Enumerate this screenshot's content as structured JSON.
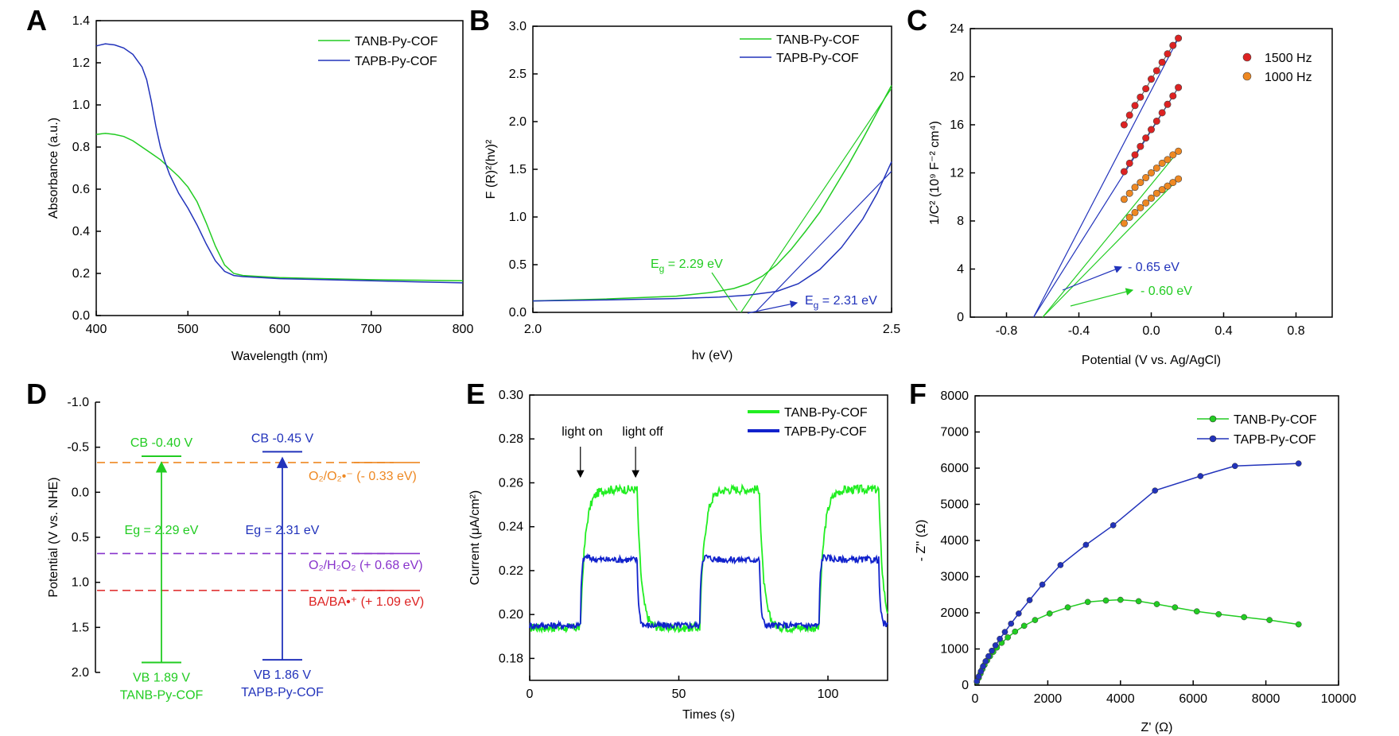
{
  "chart_data": [
    {
      "panel": "A",
      "type": "line",
      "xlabel": "Wavelength (nm)",
      "ylabel": "Absorbance (a.u.)",
      "xlim": [
        400,
        800
      ],
      "ylim": [
        0.0,
        1.4
      ],
      "xticks": [
        400,
        500,
        600,
        700,
        800
      ],
      "yticks": [
        0.0,
        0.2,
        0.4,
        0.6,
        0.8,
        1.0,
        1.2,
        1.4
      ],
      "xtick_labels": [
        "400",
        "500",
        "600",
        "700",
        "800"
      ],
      "ytick_labels": [
        "0.0",
        "0.2",
        "0.4",
        "0.6",
        "0.8",
        "1.0",
        "1.2",
        "1.4"
      ],
      "legend": [
        "TANB-Py-COF",
        "TAPB-Py-COF"
      ],
      "series": [
        {
          "name": "TANB-Py-COF",
          "color": "#22cc22",
          "x": [
            400,
            410,
            420,
            430,
            440,
            450,
            460,
            470,
            480,
            490,
            500,
            510,
            520,
            530,
            540,
            550,
            560,
            580,
            600,
            650,
            700,
            750,
            800
          ],
          "y": [
            0.86,
            0.865,
            0.86,
            0.85,
            0.83,
            0.8,
            0.77,
            0.74,
            0.7,
            0.66,
            0.61,
            0.54,
            0.44,
            0.33,
            0.24,
            0.2,
            0.19,
            0.185,
            0.18,
            0.175,
            0.17,
            0.168,
            0.165
          ]
        },
        {
          "name": "TAPB-Py-COF",
          "color": "#2233bb",
          "x": [
            400,
            410,
            420,
            430,
            440,
            450,
            455,
            460,
            465,
            470,
            475,
            480,
            490,
            500,
            510,
            520,
            530,
            540,
            550,
            560,
            580,
            600,
            650,
            700,
            750,
            800
          ],
          "y": [
            1.28,
            1.29,
            1.285,
            1.27,
            1.24,
            1.18,
            1.12,
            1.02,
            0.9,
            0.8,
            0.73,
            0.67,
            0.58,
            0.51,
            0.43,
            0.34,
            0.26,
            0.21,
            0.19,
            0.185,
            0.18,
            0.175,
            0.17,
            0.165,
            0.16,
            0.155
          ]
        }
      ]
    },
    {
      "panel": "B",
      "type": "line",
      "xlabel": "hv (eV)",
      "ylabel": "F (R)²(hv)²",
      "xlim": [
        2.0,
        2.5
      ],
      "ylim": [
        0.0,
        3.0
      ],
      "xticks": [
        2.0,
        2.5
      ],
      "yticks": [
        0.0,
        0.5,
        1.0,
        1.5,
        2.0,
        2.5,
        3.0
      ],
      "xtick_labels": [
        "2.0",
        "2.5"
      ],
      "ytick_labels": [
        "0.0",
        "0.5",
        "1.0",
        "1.5",
        "2.0",
        "2.5",
        "3.0"
      ],
      "legend": [
        "TANB-Py-COF",
        "TAPB-Py-COF"
      ],
      "series": [
        {
          "name": "TANB-Py-COF",
          "color": "#22cc22",
          "x": [
            2.0,
            2.1,
            2.2,
            2.25,
            2.28,
            2.3,
            2.32,
            2.34,
            2.36,
            2.38,
            2.4,
            2.42,
            2.44,
            2.46,
            2.48,
            2.5
          ],
          "y": [
            0.12,
            0.14,
            0.17,
            0.21,
            0.25,
            0.3,
            0.38,
            0.5,
            0.66,
            0.85,
            1.05,
            1.3,
            1.55,
            1.82,
            2.1,
            2.38
          ]
        },
        {
          "name": "TAPB-Py-COF",
          "color": "#2233bb",
          "x": [
            2.0,
            2.1,
            2.2,
            2.26,
            2.3,
            2.34,
            2.37,
            2.4,
            2.43,
            2.46,
            2.48,
            2.5
          ],
          "y": [
            0.12,
            0.13,
            0.145,
            0.16,
            0.18,
            0.22,
            0.3,
            0.45,
            0.68,
            0.98,
            1.25,
            1.58
          ]
        }
      ],
      "tangents": [
        {
          "color": "#22cc22",
          "x": [
            2.29,
            2.5
          ],
          "y": [
            0.0,
            2.35
          ]
        },
        {
          "color": "#2233bb",
          "x": [
            2.31,
            2.5
          ],
          "y": [
            0.0,
            1.48
          ]
        }
      ],
      "annotations": {
        "tanb_eg": {
          "prefix": "E",
          "sub": "g",
          "text": " = 2.29 eV"
        },
        "tapb_eg": {
          "prefix": "E",
          "sub": "g",
          "text": " = 2.31 eV"
        }
      }
    },
    {
      "panel": "C",
      "type": "scatter",
      "xlabel": "Potential (V vs. Ag/AgCl)",
      "ylabel": "1/C² (10⁹ F⁻² cm⁴)",
      "xlim": [
        -1.0,
        1.0
      ],
      "ylim": [
        0,
        24
      ],
      "xticks": [
        -0.8,
        -0.4,
        0.0,
        0.4,
        0.8
      ],
      "yticks": [
        0,
        4,
        8,
        12,
        16,
        20,
        24
      ],
      "xtick_labels": [
        "-0.8",
        "-0.4",
        "0.0",
        "0.4",
        "0.8"
      ],
      "ytick_labels": [
        "0",
        "4",
        "8",
        "12",
        "16",
        "20",
        "24"
      ],
      "legend": [
        "1500 Hz",
        "1000 Hz"
      ],
      "series": [
        {
          "name": "1500 Hz",
          "color": "#dd2222",
          "set": "upper",
          "x": [
            -0.15,
            -0.12,
            -0.09,
            -0.06,
            -0.03,
            0.0,
            0.03,
            0.06,
            0.09,
            0.12,
            0.15
          ],
          "y": [
            16.0,
            16.8,
            17.6,
            18.3,
            19.0,
            19.8,
            20.5,
            21.2,
            21.9,
            22.6,
            23.2
          ]
        },
        {
          "name": "1500 Hz",
          "color": "#dd2222",
          "set": "lower",
          "x": [
            -0.15,
            -0.12,
            -0.09,
            -0.06,
            -0.03,
            0.0,
            0.03,
            0.06,
            0.09,
            0.12,
            0.15
          ],
          "y": [
            12.1,
            12.8,
            13.5,
            14.2,
            14.9,
            15.6,
            16.3,
            17.0,
            17.7,
            18.4,
            19.1
          ]
        },
        {
          "name": "1000 Hz",
          "color": "#ee8822",
          "set": "upper",
          "x": [
            -0.15,
            -0.12,
            -0.09,
            -0.06,
            -0.03,
            0.0,
            0.03,
            0.06,
            0.09,
            0.12,
            0.15
          ],
          "y": [
            9.8,
            10.3,
            10.8,
            11.2,
            11.6,
            12.0,
            12.4,
            12.8,
            13.1,
            13.5,
            13.8
          ]
        },
        {
          "name": "1000 Hz",
          "color": "#ee8822",
          "set": "lower",
          "x": [
            -0.15,
            -0.12,
            -0.09,
            -0.06,
            -0.03,
            0.0,
            0.03,
            0.06,
            0.09,
            0.12,
            0.15
          ],
          "y": [
            7.8,
            8.3,
            8.7,
            9.1,
            9.5,
            9.9,
            10.3,
            10.6,
            10.9,
            11.2,
            11.5
          ]
        }
      ],
      "fit_lines": [
        {
          "color": "#2233bb",
          "x": [
            -0.65,
            0.15
          ],
          "y": [
            0,
            23.2
          ]
        },
        {
          "color": "#2233bb",
          "x": [
            -0.65,
            0.15
          ],
          "y": [
            0,
            19.1
          ]
        },
        {
          "color": "#22cc22",
          "x": [
            -0.6,
            0.15
          ],
          "y": [
            0,
            13.8
          ]
        },
        {
          "color": "#22cc22",
          "x": [
            -0.6,
            0.15
          ],
          "y": [
            0,
            11.5
          ]
        }
      ],
      "annotations": {
        "tapb": "- 0.65 eV",
        "tanb": "- 0.60 eV"
      }
    },
    {
      "panel": "D",
      "type": "diagram",
      "ylabel": "Potential (V vs. NHE)",
      "ylim": [
        -1.0,
        2.0
      ],
      "yticks": [
        -1.0,
        -0.5,
        0.0,
        0.5,
        1.0,
        1.5,
        2.0
      ],
      "ytick_labels": [
        "-1.0",
        "-0.5",
        "0.0",
        "0.5",
        "1.0",
        "1.5",
        "2.0"
      ],
      "levels": [
        {
          "label": "O₂/O₂•⁻ (- 0.33 eV)",
          "value": -0.33,
          "color": "#ee8822"
        },
        {
          "label": "O₂/H₂O₂ (+ 0.68 eV)",
          "value": 0.68,
          "color": "#8833cc"
        },
        {
          "label": "BA/BA•⁺ (+ 1.09 eV)",
          "value": 1.09,
          "color": "#dd2222"
        }
      ],
      "tanb": {
        "name": "TANB-Py-COF",
        "cb": -0.4,
        "vb": 1.89,
        "cb_label": "CB  -0.40 V",
        "vb_label": "VB  1.89 V",
        "eg_label": "Eg = 2.29 eV",
        "color": "#22cc22"
      },
      "tapb": {
        "name": "TAPB-Py-COF",
        "cb": -0.45,
        "vb": 1.86,
        "cb_label": "CB  -0.45 V",
        "vb_label": "VB  1.86 V",
        "eg_label": "Eg = 2.31 eV",
        "color": "#2233bb"
      }
    },
    {
      "panel": "E",
      "type": "line",
      "xlabel": "Times (s)",
      "ylabel": "Current (μA/cm²)",
      "xlim": [
        0,
        120
      ],
      "ylim": [
        0.17,
        0.3
      ],
      "xticks": [
        0,
        50,
        100
      ],
      "yticks": [
        0.18,
        0.2,
        0.22,
        0.24,
        0.26,
        0.28,
        0.3
      ],
      "xtick_labels": [
        "0",
        "50",
        "100"
      ],
      "ytick_labels": [
        "0.18",
        "0.20",
        "0.22",
        "0.24",
        "0.26",
        "0.28",
        "0.30"
      ],
      "legend": [
        "TANB-Py-COF",
        "TAPB-Py-COF"
      ],
      "light_on_s": [
        17,
        57,
        97
      ],
      "light_off_s": [
        36,
        77,
        117
      ],
      "series": [
        {
          "name": "TANB-Py-COF",
          "color": "#22ee22",
          "baseline": 0.194,
          "plateau": 0.257
        },
        {
          "name": "TAPB-Py-COF",
          "color": "#1122cc",
          "baseline": 0.195,
          "plateau": 0.225,
          "peak": 0.232
        }
      ],
      "annotations": {
        "light_on": "light on",
        "light_off": "light off"
      }
    },
    {
      "panel": "F",
      "type": "line",
      "xlabel": "Z' (Ω)",
      "ylabel": "- Z'' (Ω)",
      "xlim": [
        0,
        10000
      ],
      "ylim": [
        0,
        8000
      ],
      "xticks": [
        0,
        2000,
        4000,
        6000,
        8000,
        10000
      ],
      "yticks": [
        0,
        1000,
        2000,
        3000,
        4000,
        5000,
        6000,
        7000,
        8000
      ],
      "xtick_labels": [
        "0",
        "2000",
        "4000",
        "6000",
        "8000",
        "10000"
      ],
      "ytick_labels": [
        "0",
        "1000",
        "2000",
        "3000",
        "4000",
        "5000",
        "6000",
        "7000",
        "8000"
      ],
      "legend": [
        "TANB-Py-COF",
        "TAPB-Py-COF"
      ],
      "series": [
        {
          "name": "TANB-Py-COF",
          "color": "#22cc22",
          "x": [
            50,
            100,
            150,
            200,
            260,
            330,
            410,
            500,
            600,
            730,
            900,
            1100,
            1350,
            1650,
            2050,
            2550,
            3100,
            3600,
            4000,
            4500,
            5000,
            5500,
            6100,
            6700,
            7400,
            8100,
            8900
          ],
          "y": [
            90,
            200,
            320,
            440,
            560,
            680,
            800,
            920,
            1040,
            1170,
            1320,
            1480,
            1640,
            1800,
            1980,
            2150,
            2300,
            2340,
            2360,
            2320,
            2240,
            2150,
            2040,
            1960,
            1880,
            1800,
            1680
          ]
        },
        {
          "name": "TAPB-Py-COF",
          "color": "#2233bb",
          "x": [
            50,
            100,
            160,
            220,
            290,
            370,
            460,
            560,
            680,
            820,
            990,
            1200,
            1500,
            1850,
            2350,
            3050,
            3800,
            4950,
            6200,
            7150,
            8900
          ],
          "y": [
            110,
            240,
            380,
            520,
            660,
            800,
            950,
            1100,
            1280,
            1470,
            1700,
            1980,
            2350,
            2780,
            3320,
            3880,
            4420,
            5380,
            5780,
            6060,
            6130
          ]
        }
      ]
    }
  ]
}
